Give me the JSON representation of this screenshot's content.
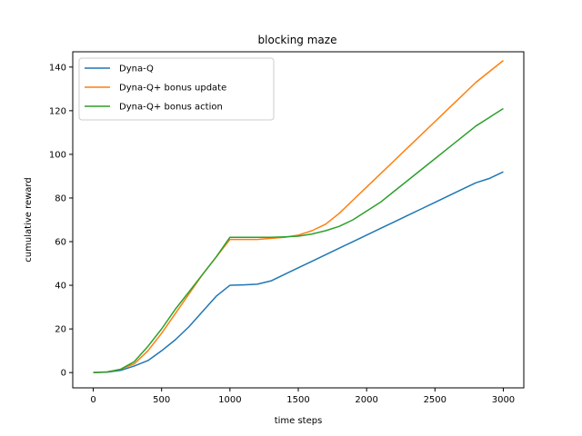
{
  "chart_data": {
    "type": "line",
    "title": "blocking maze",
    "xlabel": "time steps",
    "ylabel": "cumulative reward",
    "xlim": [
      -150,
      3150
    ],
    "ylim": [
      -7,
      147
    ],
    "xticks": [
      0,
      500,
      1000,
      1500,
      2000,
      2500,
      3000
    ],
    "yticks": [
      0,
      20,
      40,
      60,
      80,
      100,
      120,
      140
    ],
    "grid": false,
    "legend_position": "top-left",
    "series": [
      {
        "name": "Dyna-Q",
        "color": "#1f77b4",
        "x": [
          0,
          100,
          200,
          300,
          400,
          500,
          600,
          700,
          800,
          900,
          1000,
          1100,
          1200,
          1300,
          1400,
          1500,
          1600,
          1700,
          1800,
          1900,
          2000,
          2100,
          2200,
          2300,
          2400,
          2500,
          2600,
          2700,
          2800,
          2900,
          3000
        ],
        "values": [
          0,
          0.2,
          1,
          3,
          5.5,
          10,
          15,
          21,
          28,
          35,
          40,
          40.2,
          40.5,
          42,
          45,
          48,
          51,
          54,
          57,
          60,
          63,
          66,
          69,
          72,
          75,
          78,
          81,
          84,
          87,
          89,
          92
        ]
      },
      {
        "name": "Dyna-Q+ bonus update",
        "color": "#ff7f0e",
        "x": [
          0,
          100,
          200,
          300,
          400,
          500,
          600,
          700,
          800,
          900,
          1000,
          1100,
          1200,
          1300,
          1400,
          1500,
          1600,
          1700,
          1800,
          1900,
          2000,
          2100,
          2200,
          2300,
          2400,
          2500,
          2600,
          2700,
          2800,
          2900,
          3000
        ],
        "values": [
          0,
          0.3,
          1.5,
          4,
          10,
          18,
          27,
          36,
          45,
          53,
          61,
          61,
          61,
          61.5,
          62,
          63,
          65,
          68,
          73,
          79,
          85,
          91,
          97,
          103,
          109,
          115,
          121,
          127,
          133,
          138,
          143
        ]
      },
      {
        "name": "Dyna-Q+ bonus action",
        "color": "#2ca02c",
        "x": [
          0,
          100,
          200,
          300,
          400,
          500,
          600,
          700,
          800,
          900,
          1000,
          1100,
          1200,
          1300,
          1400,
          1500,
          1600,
          1700,
          1800,
          1900,
          2000,
          2100,
          2200,
          2300,
          2400,
          2500,
          2600,
          2700,
          2800,
          2900,
          3000
        ],
        "values": [
          0,
          0.3,
          1.5,
          5,
          12,
          20,
          29,
          37,
          45,
          53,
          62,
          62,
          62,
          62,
          62.2,
          62.5,
          63.5,
          65,
          67,
          70,
          74,
          78,
          83,
          88,
          93,
          98,
          103,
          108,
          113,
          117,
          121
        ]
      }
    ]
  }
}
